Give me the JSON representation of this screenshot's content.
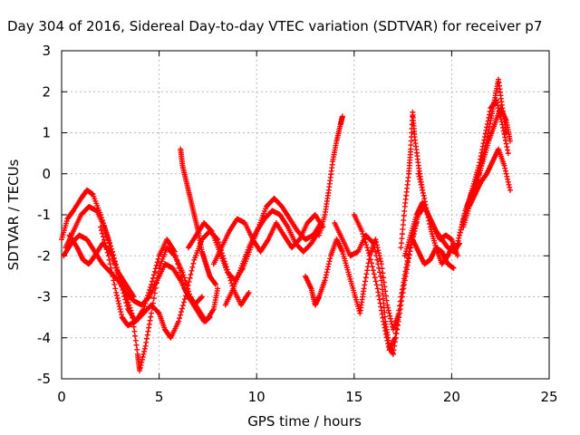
{
  "chart_data": {
    "type": "scatter",
    "title": "Day 304 of 2016, Sidereal Day-to-day VTEC variation (SDTVAR) for receiver p7",
    "xlabel": "GPS time / hours",
    "ylabel": "SDTVAR / TECUs",
    "xlim": [
      0,
      25
    ],
    "ylim": [
      -5,
      3
    ],
    "xticks": [
      "0",
      "5",
      "10",
      "15",
      "20",
      "25"
    ],
    "yticks": [
      "3",
      "2",
      "1",
      "0",
      "-1",
      "-2",
      "-3",
      "-4",
      "-5"
    ],
    "grid": true,
    "marker": "plus",
    "color": "#ff0000",
    "tracks": [
      [
        [
          0.0,
          -1.6
        ],
        [
          0.3,
          -1.1
        ],
        [
          0.6,
          -0.9
        ],
        [
          1.0,
          -0.6
        ],
        [
          1.3,
          -0.4
        ],
        [
          1.6,
          -0.5
        ],
        [
          2.0,
          -1.0
        ],
        [
          2.4,
          -1.6
        ],
        [
          2.8,
          -2.3
        ],
        [
          3.2,
          -2.8
        ],
        [
          3.6,
          -3.4
        ],
        [
          3.9,
          -4.4
        ],
        [
          4.0,
          -4.8
        ],
        [
          4.3,
          -4.2
        ],
        [
          4.6,
          -3.4
        ],
        [
          5.0,
          -2.3
        ],
        [
          5.4,
          -1.8
        ],
        [
          5.8,
          -2.0
        ],
        [
          6.2,
          -2.4
        ],
        [
          6.6,
          -3.0
        ],
        [
          7.0,
          -3.3
        ],
        [
          7.4,
          -3.6
        ],
        [
          7.8,
          -3.3
        ],
        [
          8.0,
          -2.8
        ]
      ],
      [
        [
          0.1,
          -2.0
        ],
        [
          0.5,
          -1.7
        ],
        [
          0.9,
          -1.5
        ],
        [
          1.3,
          -1.6
        ],
        [
          1.7,
          -1.9
        ],
        [
          2.1,
          -2.2
        ],
        [
          2.5,
          -2.4
        ],
        [
          2.9,
          -2.6
        ],
        [
          3.3,
          -2.9
        ],
        [
          3.7,
          -3.1
        ],
        [
          4.1,
          -3.2
        ],
        [
          4.5,
          -3.0
        ],
        [
          4.9,
          -2.6
        ],
        [
          5.3,
          -2.2
        ],
        [
          5.7,
          -2.3
        ],
        [
          6.1,
          -2.6
        ],
        [
          6.5,
          -3.0
        ],
        [
          6.9,
          -3.3
        ],
        [
          7.3,
          -3.6
        ],
        [
          7.6,
          -3.5
        ]
      ],
      [
        [
          0.2,
          -1.8
        ],
        [
          0.6,
          -1.4
        ],
        [
          1.0,
          -1.0
        ],
        [
          1.4,
          -0.8
        ],
        [
          1.8,
          -0.9
        ],
        [
          2.2,
          -1.3
        ],
        [
          2.6,
          -1.9
        ],
        [
          3.0,
          -2.6
        ],
        [
          3.4,
          -3.3
        ],
        [
          3.8,
          -3.6
        ],
        [
          4.2,
          -3.3
        ],
        [
          4.6,
          -2.7
        ],
        [
          5.0,
          -2.0
        ],
        [
          5.4,
          -1.6
        ],
        [
          5.8,
          -1.9
        ],
        [
          6.3,
          -2.8
        ],
        [
          6.8,
          -3.2
        ],
        [
          7.2,
          -3.0
        ]
      ],
      [
        [
          0.4,
          -1.5
        ],
        [
          0.8,
          -1.8
        ],
        [
          1.1,
          -2.1
        ],
        [
          1.4,
          -2.2
        ],
        [
          1.7,
          -2.0
        ],
        [
          2.1,
          -1.7
        ],
        [
          2.5,
          -1.9
        ],
        [
          2.9,
          -2.4
        ],
        [
          3.3,
          -2.7
        ],
        [
          3.7,
          -3.0
        ]
      ],
      [
        [
          2.0,
          -1.3
        ],
        [
          2.4,
          -2.0
        ],
        [
          2.8,
          -2.9
        ],
        [
          3.1,
          -3.5
        ],
        [
          3.4,
          -3.7
        ],
        [
          3.8,
          -3.6
        ],
        [
          4.2,
          -3.4
        ],
        [
          4.6,
          -3.2
        ],
        [
          5.0,
          -3.4
        ],
        [
          5.3,
          -3.8
        ],
        [
          5.6,
          -4.0
        ],
        [
          6.0,
          -3.6
        ],
        [
          6.4,
          -2.9
        ],
        [
          6.8,
          -2.1
        ],
        [
          7.2,
          -1.6
        ],
        [
          7.6,
          -1.4
        ],
        [
          8.0,
          -1.6
        ],
        [
          8.4,
          -2.2
        ],
        [
          8.8,
          -2.8
        ],
        [
          9.2,
          -3.2
        ],
        [
          9.6,
          -2.9
        ]
      ],
      [
        [
          6.1,
          0.6
        ],
        [
          6.2,
          0.2
        ],
        [
          6.4,
          -0.2
        ],
        [
          6.6,
          -0.6
        ],
        [
          6.8,
          -1.0
        ],
        [
          7.0,
          -1.4
        ],
        [
          7.2,
          -1.9
        ],
        [
          7.4,
          -2.2
        ],
        [
          7.6,
          -2.5
        ],
        [
          7.9,
          -2.7
        ]
      ],
      [
        [
          6.5,
          -1.8
        ],
        [
          6.9,
          -1.5
        ],
        [
          7.3,
          -1.2
        ],
        [
          7.7,
          -1.4
        ],
        [
          8.1,
          -1.9
        ],
        [
          8.5,
          -2.4
        ],
        [
          8.9,
          -2.6
        ],
        [
          9.3,
          -2.3
        ],
        [
          9.7,
          -1.8
        ],
        [
          10.1,
          -1.3
        ],
        [
          10.5,
          -0.8
        ],
        [
          10.9,
          -0.6
        ],
        [
          11.3,
          -0.8
        ],
        [
          11.7,
          -1.1
        ],
        [
          12.1,
          -1.4
        ],
        [
          12.5,
          -1.6
        ],
        [
          12.9,
          -1.5
        ],
        [
          13.3,
          -1.2
        ]
      ],
      [
        [
          7.8,
          -2.2
        ],
        [
          8.2,
          -1.8
        ],
        [
          8.6,
          -1.4
        ],
        [
          9.0,
          -1.1
        ],
        [
          9.4,
          -1.2
        ],
        [
          9.8,
          -1.6
        ],
        [
          10.2,
          -1.9
        ],
        [
          10.6,
          -1.6
        ],
        [
          11.0,
          -1.2
        ],
        [
          11.4,
          -1.5
        ],
        [
          11.8,
          -1.8
        ],
        [
          12.2,
          -1.6
        ],
        [
          12.6,
          -1.2
        ],
        [
          13.0,
          -1.0
        ],
        [
          13.4,
          -1.3
        ]
      ],
      [
        [
          8.4,
          -3.2
        ],
        [
          8.8,
          -2.8
        ],
        [
          9.2,
          -2.3
        ],
        [
          9.6,
          -1.8
        ],
        [
          10.0,
          -1.4
        ],
        [
          10.4,
          -1.1
        ],
        [
          10.8,
          -0.9
        ],
        [
          11.2,
          -1.0
        ],
        [
          11.6,
          -1.3
        ],
        [
          12.0,
          -1.7
        ],
        [
          12.4,
          -1.9
        ],
        [
          12.8,
          -1.7
        ],
        [
          13.2,
          -1.4
        ]
      ],
      [
        [
          13.2,
          -1.5
        ],
        [
          13.5,
          -1.0
        ],
        [
          13.7,
          -0.4
        ],
        [
          13.9,
          0.3
        ],
        [
          14.1,
          0.8
        ],
        [
          14.3,
          1.2
        ],
        [
          14.4,
          1.4
        ]
      ],
      [
        [
          12.5,
          -2.5
        ],
        [
          12.8,
          -2.8
        ],
        [
          13.0,
          -3.2
        ],
        [
          13.2,
          -3.0
        ],
        [
          13.5,
          -2.6
        ],
        [
          13.8,
          -2.0
        ],
        [
          14.1,
          -1.6
        ],
        [
          14.4,
          -1.9
        ],
        [
          14.7,
          -2.4
        ],
        [
          15.0,
          -2.9
        ],
        [
          15.3,
          -3.4
        ],
        [
          15.5,
          -2.8
        ],
        [
          15.8,
          -2.0
        ],
        [
          16.1,
          -1.6
        ],
        [
          16.4,
          -2.2
        ],
        [
          16.7,
          -3.2
        ],
        [
          17.0,
          -3.8
        ],
        [
          17.3,
          -3.4
        ]
      ],
      [
        [
          14.0,
          -1.2
        ],
        [
          14.4,
          -1.6
        ],
        [
          14.8,
          -2.0
        ],
        [
          15.2,
          -1.9
        ],
        [
          15.6,
          -1.5
        ],
        [
          16.0,
          -1.7
        ],
        [
          16.4,
          -2.6
        ],
        [
          16.6,
          -3.6
        ],
        [
          16.8,
          -4.2
        ],
        [
          17.0,
          -4.4
        ],
        [
          17.3,
          -3.5
        ],
        [
          17.6,
          -2.6
        ],
        [
          17.9,
          -1.8
        ],
        [
          18.2,
          -1.2
        ]
      ],
      [
        [
          15.0,
          -1.0
        ],
        [
          15.4,
          -1.4
        ],
        [
          15.8,
          -2.0
        ],
        [
          16.2,
          -2.8
        ],
        [
          16.5,
          -3.6
        ],
        [
          16.8,
          -4.3
        ],
        [
          17.1,
          -4.0
        ],
        [
          17.4,
          -3.0
        ],
        [
          17.7,
          -2.2
        ],
        [
          18.0,
          -1.5
        ],
        [
          18.3,
          -1.0
        ],
        [
          18.6,
          -0.8
        ],
        [
          18.9,
          -1.1
        ],
        [
          19.2,
          -1.4
        ],
        [
          19.5,
          -1.6
        ],
        [
          19.8,
          -1.8
        ],
        [
          20.1,
          -1.9
        ],
        [
          20.4,
          -1.7
        ]
      ],
      [
        [
          17.4,
          -1.8
        ],
        [
          17.6,
          -0.8
        ],
        [
          17.8,
          0.0
        ],
        [
          17.9,
          0.6
        ],
        [
          18.0,
          1.5
        ],
        [
          18.1,
          0.9
        ],
        [
          18.3,
          0.2
        ],
        [
          18.5,
          -0.4
        ]
      ],
      [
        [
          17.6,
          -2.0
        ],
        [
          17.9,
          -1.5
        ],
        [
          18.2,
          -1.0
        ],
        [
          18.5,
          -0.7
        ],
        [
          18.8,
          -1.0
        ],
        [
          19.1,
          -1.3
        ],
        [
          19.4,
          -1.6
        ],
        [
          19.7,
          -1.5
        ],
        [
          20.0,
          -1.6
        ],
        [
          20.3,
          -2.0
        ]
      ],
      [
        [
          18.0,
          -1.6
        ],
        [
          18.3,
          -1.9
        ],
        [
          18.6,
          -2.2
        ],
        [
          18.9,
          -2.1
        ],
        [
          19.2,
          -1.8
        ],
        [
          19.5,
          -1.9
        ],
        [
          19.8,
          -2.2
        ],
        [
          20.1,
          -2.3
        ]
      ],
      [
        [
          18.3,
          0.0
        ],
        [
          18.6,
          -0.6
        ],
        [
          18.9,
          -1.3
        ],
        [
          19.2,
          -1.8
        ],
        [
          19.5,
          -2.2
        ],
        [
          19.8,
          -2.0
        ],
        [
          20.1,
          -1.7
        ]
      ],
      [
        [
          20.2,
          -1.9
        ],
        [
          20.5,
          -1.3
        ],
        [
          20.8,
          -0.8
        ],
        [
          21.1,
          -0.4
        ],
        [
          21.4,
          0.0
        ],
        [
          21.7,
          0.6
        ],
        [
          22.0,
          1.3
        ],
        [
          22.2,
          1.8
        ],
        [
          22.4,
          2.3
        ],
        [
          22.6,
          1.6
        ],
        [
          22.8,
          1.0
        ]
      ],
      [
        [
          20.4,
          -1.5
        ],
        [
          20.7,
          -0.9
        ],
        [
          21.0,
          -0.5
        ],
        [
          21.3,
          -0.2
        ],
        [
          21.6,
          0.3
        ],
        [
          21.9,
          0.8
        ],
        [
          22.2,
          1.2
        ],
        [
          22.5,
          1.6
        ],
        [
          22.8,
          1.3
        ],
        [
          23.0,
          0.8
        ]
      ],
      [
        [
          20.6,
          -1.3
        ],
        [
          20.9,
          -0.8
        ],
        [
          21.2,
          -0.5
        ],
        [
          21.5,
          -0.2
        ],
        [
          21.8,
          0.0
        ],
        [
          22.1,
          0.3
        ],
        [
          22.4,
          0.6
        ],
        [
          22.7,
          0.2
        ],
        [
          23.0,
          -0.4
        ]
      ],
      [
        [
          20.8,
          -0.8
        ],
        [
          21.1,
          -0.3
        ],
        [
          21.4,
          0.2
        ],
        [
          21.7,
          0.9
        ],
        [
          22.0,
          1.6
        ],
        [
          22.3,
          1.8
        ],
        [
          22.6,
          1.2
        ],
        [
          22.9,
          0.5
        ]
      ]
    ]
  }
}
